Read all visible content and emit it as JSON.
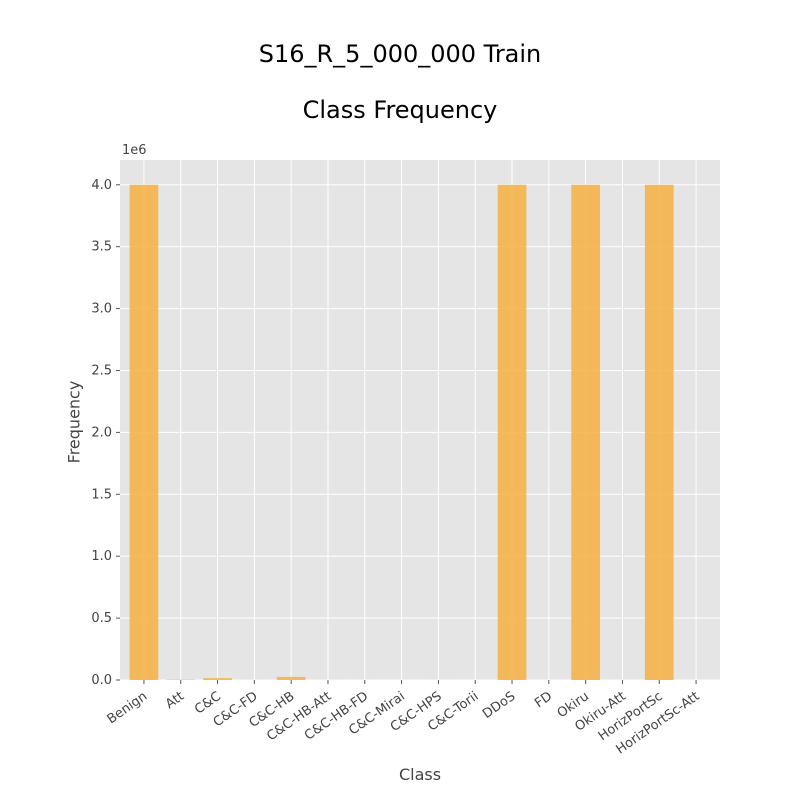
{
  "chart_data": {
    "type": "bar",
    "title": "S16_R_5_000_000 Train",
    "subtitle": "Class Frequency",
    "xlabel": "Class",
    "ylabel": "Frequency",
    "y_exponent_label": "1e6",
    "y_scale_factor": 1000000,
    "categories": [
      "Benign",
      "Att",
      "C&C",
      "C&C-FD",
      "C&C-HB",
      "C&C-HB-Att",
      "C&C-HB-FD",
      "C&C-Mirai",
      "C&C-HPS",
      "C&C-Torii",
      "DDoS",
      "FD",
      "Okiru",
      "Okiru-Att",
      "HorizPortSc",
      "HorizPortSc-Att"
    ],
    "values": [
      4000000,
      3000,
      15000,
      500,
      25000,
      500,
      200,
      100,
      300,
      100,
      4000000,
      100,
      4000000,
      300,
      4000000,
      100
    ],
    "ylim": [
      0,
      4200000
    ],
    "yticks": [
      0,
      500000,
      1000000,
      1500000,
      2000000,
      2500000,
      3000000,
      3500000,
      4000000
    ],
    "ytick_labels": [
      "0.0",
      "0.5",
      "1.0",
      "1.5",
      "2.0",
      "2.5",
      "3.0",
      "3.5",
      "4.0"
    ],
    "grid": true,
    "bar_color": "#f5b041",
    "background_color": "#e5e5e5",
    "grid_color": "#ffffff"
  }
}
